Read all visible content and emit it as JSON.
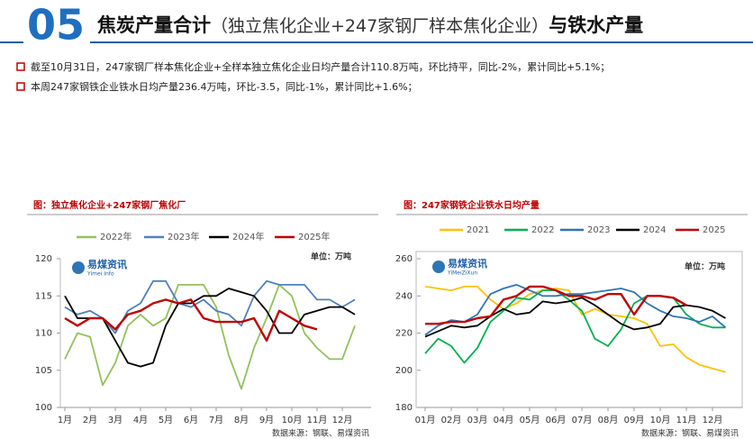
{
  "header": {
    "number": "05",
    "title": "焦炭产量合计",
    "title_paren": "（独立焦化企业+247家钢厂样本焦化企业）",
    "title_end": "与铁水产量"
  },
  "bullets": [
    "截至10月31日，247家钢厂样本焦化企业+全样本独立焦化企业日均产量合计110.8万吨，环比持平，同比-2%，累计同比+5.1%；",
    "本周247家钢铁企业铁水日均产量236.4万吨，环比-3.5，同比-1%，累计同比+1.6%；"
  ],
  "chart_data": [
    {
      "type": "line",
      "title": "图：独立焦化企业+247家钢厂焦化厂",
      "unit": "单位：万吨",
      "source": "数据来源：钢联、易煤资讯",
      "logo": "易煤资讯",
      "logo_sub": "Yimei Info",
      "grid": false,
      "legend": "top",
      "x": [
        0,
        0.5,
        1,
        1.5,
        2,
        2.5,
        3,
        3.5,
        4,
        4.5,
        5,
        5.5,
        6,
        6.5,
        7,
        7.5,
        8,
        8.5,
        9,
        9.5,
        10,
        10.5,
        11,
        11.5
      ],
      "xlim": [
        0,
        12
      ],
      "xticks": [
        {
          "value": 0,
          "label": "1月"
        },
        {
          "value": 1,
          "label": "2月"
        },
        {
          "value": 2,
          "label": "3月"
        },
        {
          "value": 3,
          "label": "4月"
        },
        {
          "value": 4,
          "label": "5月"
        },
        {
          "value": 5,
          "label": "6月"
        },
        {
          "value": 6,
          "label": "7月"
        },
        {
          "value": 7,
          "label": "8月"
        },
        {
          "value": 8,
          "label": "9月"
        },
        {
          "value": 9,
          "label": "10月"
        },
        {
          "value": 10,
          "label": "11月"
        },
        {
          "value": 11,
          "label": "12月"
        }
      ],
      "ylim": [
        100,
        120
      ],
      "yticks": [
        100,
        105,
        110,
        115,
        120
      ],
      "series": [
        {
          "name": "2022年",
          "color": "#92c15a",
          "values": [
            106.5,
            110,
            109.5,
            103,
            106,
            111,
            112.5,
            111,
            112,
            116.5,
            116.5,
            116.5,
            113.5,
            107,
            102.5,
            108,
            112,
            116.5,
            115,
            110,
            108,
            106.5,
            106.5,
            111
          ]
        },
        {
          "name": "2023年",
          "color": "#4f81bd",
          "values": [
            113.5,
            112.5,
            113,
            112,
            110,
            113,
            114,
            117,
            117,
            114,
            113.5,
            114.5,
            113,
            112.5,
            111,
            115,
            117,
            116.5,
            116.5,
            116.5,
            114.5,
            114.5,
            113.5,
            114.5
          ]
        },
        {
          "name": "2024年",
          "color": "#000000",
          "values": [
            115,
            112,
            112,
            112,
            109,
            106,
            105.5,
            106,
            111,
            114,
            114,
            115,
            115,
            116,
            115.5,
            115,
            113,
            110,
            110,
            112.5,
            113,
            113.5,
            113.5,
            112.5
          ]
        },
        {
          "name": "2025年",
          "color": "#c00000",
          "values": [
            112,
            111,
            112,
            112,
            110.5,
            112.5,
            113,
            114,
            114.5,
            114,
            114.5,
            112,
            111.5,
            111.5,
            111.5,
            112,
            109,
            113,
            112,
            111,
            110.5,
            null,
            null,
            null
          ]
        }
      ]
    },
    {
      "type": "line",
      "title": "图：247家钢铁企业铁水日均产量",
      "unit": "单位：万吨",
      "source": "数据来源：钢联、易煤资讯",
      "logo": "易煤资讯",
      "logo_sub": "YiMeiZiXun",
      "grid": false,
      "legend": "top",
      "x": [
        0,
        0.5,
        1,
        1.5,
        2,
        2.5,
        3,
        3.5,
        4,
        4.5,
        5,
        5.5,
        6,
        6.5,
        7,
        7.5,
        8,
        8.5,
        9,
        9.5,
        10,
        10.5,
        11,
        11.5
      ],
      "xlim": [
        0,
        12
      ],
      "xticks": [
        {
          "value": 0,
          "label": "01月"
        },
        {
          "value": 1,
          "label": "02月"
        },
        {
          "value": 2,
          "label": "03月"
        },
        {
          "value": 3,
          "label": "04月"
        },
        {
          "value": 4,
          "label": "05月"
        },
        {
          "value": 5,
          "label": "06月"
        },
        {
          "value": 6,
          "label": "07月"
        },
        {
          "value": 7,
          "label": "08月"
        },
        {
          "value": 8,
          "label": "09月"
        },
        {
          "value": 9,
          "label": "10月"
        },
        {
          "value": 10,
          "label": "11月"
        },
        {
          "value": 11,
          "label": "12月"
        }
      ],
      "ylim": [
        180,
        260
      ],
      "yticks": [
        180,
        200,
        220,
        240,
        260
      ],
      "series": [
        {
          "name": "2021",
          "color": "#ffc000",
          "values": [
            245,
            244,
            243,
            245,
            245,
            238,
            233,
            236,
            241,
            243,
            244,
            243,
            230,
            233,
            230,
            229,
            228,
            225,
            213,
            214,
            207,
            203,
            201,
            199
          ]
        },
        {
          "name": "2022",
          "color": "#00b050",
          "values": [
            209,
            217,
            213,
            204,
            212,
            226,
            232,
            239,
            238,
            243,
            243,
            238,
            232,
            217,
            213,
            222,
            236,
            240,
            240,
            239,
            230,
            225,
            223,
            223
          ]
        },
        {
          "name": "2023",
          "color": "#2e75b6",
          "values": [
            219,
            224,
            227,
            226,
            230,
            241,
            244,
            246,
            243,
            240,
            240,
            241,
            241,
            242,
            243,
            244,
            242,
            236,
            232,
            229,
            228,
            226,
            229,
            223
          ]
        },
        {
          "name": "2024",
          "color": "#000000",
          "values": [
            218,
            221,
            224,
            223,
            224,
            229,
            233,
            230,
            231,
            237,
            236,
            237,
            239,
            235,
            230,
            225,
            222,
            223,
            225,
            234,
            235,
            234,
            232,
            228
          ]
        },
        {
          "name": "2025",
          "color": "#c00000",
          "values": [
            225,
            225,
            226,
            226,
            228,
            229,
            238,
            240,
            245,
            245,
            243,
            240,
            240,
            238,
            241,
            241,
            230,
            240,
            240,
            239,
            235,
            null,
            null,
            null
          ]
        }
      ]
    }
  ]
}
